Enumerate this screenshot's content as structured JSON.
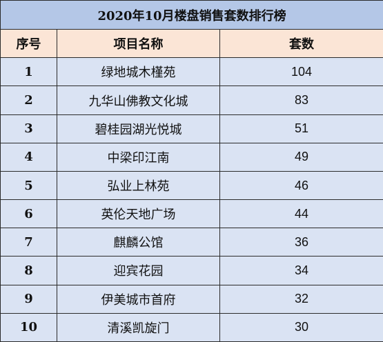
{
  "table": {
    "title": "2020年10月楼盘销售套数排行榜",
    "headers": {
      "rank": "序号",
      "name": "项目名称",
      "count": "套数"
    },
    "rows": [
      {
        "rank": "1",
        "name": "绿地城木槿苑",
        "count": "104"
      },
      {
        "rank": "2",
        "name": "九华山佛教文化城",
        "count": "83"
      },
      {
        "rank": "3",
        "name": "碧桂园湖光悦城",
        "count": "51"
      },
      {
        "rank": "4",
        "name": "中梁印江南",
        "count": "49"
      },
      {
        "rank": "5",
        "name": "弘业上林苑",
        "count": "46"
      },
      {
        "rank": "6",
        "name": "英伦天地广场",
        "count": "44"
      },
      {
        "rank": "7",
        "name": "麒麟公馆",
        "count": "36"
      },
      {
        "rank": "8",
        "name": "迎宾花园",
        "count": "34"
      },
      {
        "rank": "9",
        "name": "伊美城市首府",
        "count": "32"
      },
      {
        "rank": "10",
        "name": "清溪凯旋门",
        "count": "30"
      }
    ]
  },
  "colors": {
    "title_bg": "#b4c7e7",
    "header_bg": "#fbe5d6",
    "row_bg": "#dae3f3",
    "border": "#2a2a2a"
  }
}
